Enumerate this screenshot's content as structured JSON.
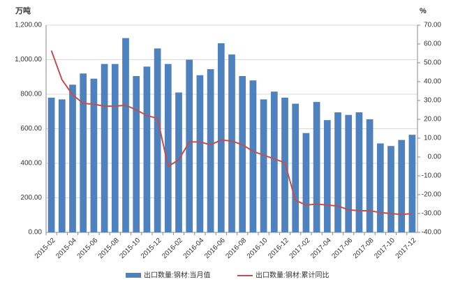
{
  "chart_data": {
    "type": "bar_line",
    "y_label": "万吨",
    "y2_label": "%",
    "categories": [
      "2015-02",
      null,
      "2015-04",
      null,
      "2015-06",
      null,
      "2015-08",
      null,
      "2015-10",
      null,
      "2015-12",
      null,
      "2016-02",
      null,
      "2016-04",
      null,
      "2016-06",
      null,
      "2016-08",
      null,
      "2016-10",
      null,
      "2016-12",
      null,
      "2017-02",
      null,
      "2017-04",
      null,
      "2017-06",
      null,
      "2017-08",
      null,
      "2017-10",
      null,
      "2017-12"
    ],
    "series": [
      {
        "name": "出口数量:钢材:当月值",
        "type": "bar",
        "color": "#4f81bd",
        "values": [
          780,
          770,
          855,
          920,
          890,
          975,
          975,
          1125,
          905,
          960,
          1065,
          975,
          810,
          1000,
          910,
          945,
          1095,
          1030,
          905,
          880,
          770,
          815,
          780,
          745,
          575,
          755,
          650,
          695,
          680,
          695,
          655,
          515,
          500,
          535,
          565
        ]
      },
      {
        "name": "出口数量:钢材:累计同比",
        "type": "line",
        "axis": "y2",
        "color": "#c0504d",
        "values": [
          56.5,
          41,
          33,
          28.5,
          28,
          27,
          27,
          27.5,
          25,
          22,
          20.5,
          -5,
          -1.5,
          8,
          8,
          6.5,
          9,
          8.5,
          6.5,
          3,
          1,
          -1,
          -3,
          -23,
          -25.5,
          -25,
          -25.5,
          -26,
          -28,
          -28.5,
          -28.5,
          -29.5,
          -30,
          -30.5,
          -30
        ]
      }
    ],
    "ylim": [
      0,
      1200
    ],
    "yticks": [
      {
        "value": 0,
        "label": "0.00"
      },
      {
        "value": 200,
        "label": "200.00"
      },
      {
        "value": 400,
        "label": "400.00"
      },
      {
        "value": 600,
        "label": "600.00"
      },
      {
        "value": 800,
        "label": "800.00"
      },
      {
        "value": 1000,
        "label": "1,000.00"
      },
      {
        "value": 1200,
        "label": "1,200.00"
      }
    ],
    "y2lim": [
      -40,
      70
    ],
    "y2ticks": [
      {
        "value": -40,
        "label": "-40.00"
      },
      {
        "value": -30,
        "label": "-30.00"
      },
      {
        "value": -20,
        "label": "-20.00"
      },
      {
        "value": -10,
        "label": "-10.00"
      },
      {
        "value": 0,
        "label": "0.00"
      },
      {
        "value": 10,
        "label": "10.00"
      },
      {
        "value": 20,
        "label": "20.00"
      },
      {
        "value": 30,
        "label": "30.00"
      },
      {
        "value": 40,
        "label": "40.00"
      },
      {
        "value": 50,
        "label": "50.00"
      },
      {
        "value": 60,
        "label": "60.00"
      },
      {
        "value": 70,
        "label": "70.00"
      }
    ],
    "grid": true,
    "legend": "bottom"
  }
}
